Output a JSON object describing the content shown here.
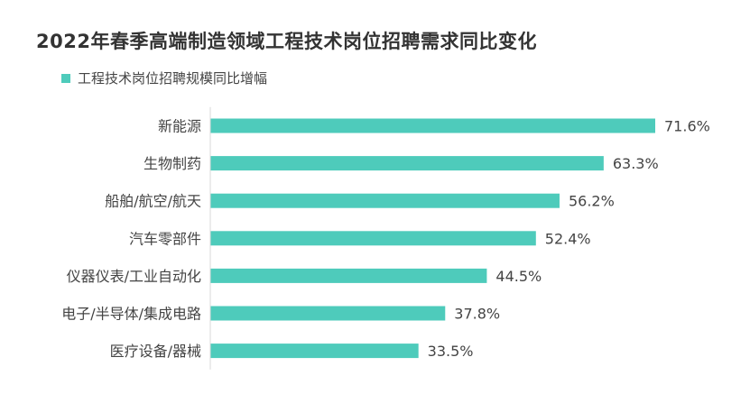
{
  "chart_data": {
    "type": "bar",
    "orientation": "horizontal",
    "title": "2022年春季高端制造领域工程技术岗位招聘需求同比变化",
    "legend_label": "工程技术岗位招聘规模同比增幅",
    "categories": [
      "新能源",
      "生物制药",
      "船舶/航空/航天",
      "汽车零部件",
      "仪器仪表/工业自动化",
      "电子/半导体/集成电路",
      "医疗设备/器械"
    ],
    "values": [
      71.6,
      63.3,
      56.2,
      52.4,
      44.5,
      37.8,
      33.5
    ],
    "value_labels": [
      "71.6%",
      "63.3%",
      "56.2%",
      "52.4%",
      "44.5%",
      "37.8%",
      "33.5%"
    ],
    "bar_color": "#4ecbbb",
    "xlim": [
      0,
      71.6
    ],
    "grid": false,
    "legend_position": "top-left"
  }
}
